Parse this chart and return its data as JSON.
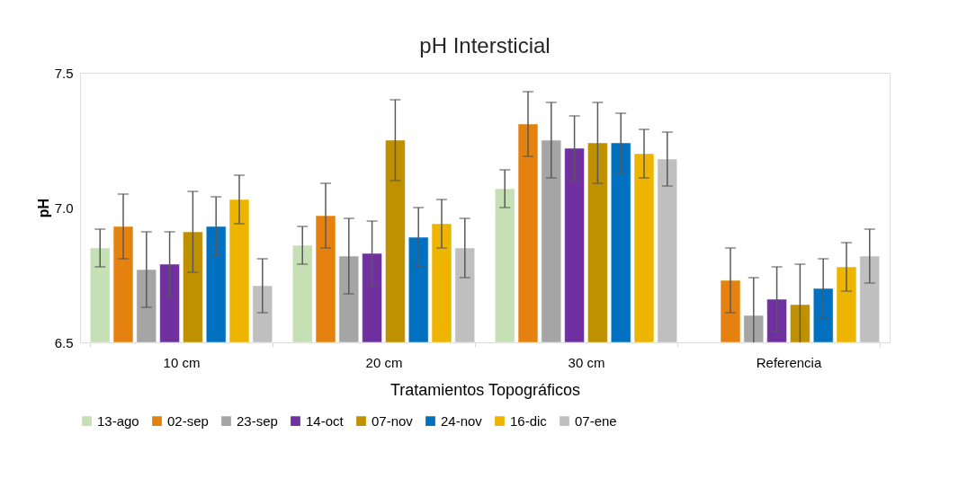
{
  "chart_data": {
    "type": "bar",
    "title": "pH Intersticial",
    "xlabel": "Tratamientos Topográficos",
    "ylabel": "pH",
    "categories": [
      "10 cm",
      "20 cm",
      "30 cm",
      "Referencia"
    ],
    "ylim": [
      6.5,
      7.5
    ],
    "yticks": [
      {
        "value": 6.5,
        "label": "6.5"
      },
      {
        "value": 7.0,
        "label": "7.0"
      },
      {
        "value": 7.5,
        "label": "7.5"
      }
    ],
    "grid": false,
    "legend": "bottom",
    "series": [
      {
        "name": "13-ago",
        "color": "#c5e0b4",
        "values": [
          6.85,
          6.86,
          7.07,
          null
        ],
        "errors": [
          0.07,
          0.07,
          0.07,
          null
        ]
      },
      {
        "name": "02-sep",
        "color": "#e5820f",
        "values": [
          6.93,
          6.97,
          7.31,
          6.73
        ],
        "errors": [
          0.12,
          0.12,
          0.12,
          0.12
        ]
      },
      {
        "name": "23-sep",
        "color": "#a5a5a5",
        "values": [
          6.77,
          6.82,
          7.25,
          6.6
        ],
        "errors": [
          0.14,
          0.14,
          0.14,
          0.14
        ]
      },
      {
        "name": "14-oct",
        "color": "#7030a0",
        "values": [
          6.79,
          6.83,
          7.22,
          6.66
        ],
        "errors": [
          0.12,
          0.12,
          0.12,
          0.12
        ]
      },
      {
        "name": "07-nov",
        "color": "#bf9000",
        "values": [
          6.91,
          7.25,
          7.24,
          6.64
        ],
        "errors": [
          0.15,
          0.15,
          0.15,
          0.15
        ]
      },
      {
        "name": "24-nov",
        "color": "#0070c0",
        "values": [
          6.93,
          6.89,
          7.24,
          6.7
        ],
        "errors": [
          0.11,
          0.11,
          0.11,
          0.11
        ]
      },
      {
        "name": "16-dic",
        "color": "#eeb500",
        "values": [
          7.03,
          6.94,
          7.2,
          6.78
        ],
        "errors": [
          0.09,
          0.09,
          0.09,
          0.09
        ]
      },
      {
        "name": "07-ene",
        "color": "#bfbfbf",
        "values": [
          6.71,
          6.85,
          7.18,
          6.82
        ],
        "errors": [
          0.1,
          0.11,
          0.1,
          0.1
        ]
      }
    ]
  }
}
